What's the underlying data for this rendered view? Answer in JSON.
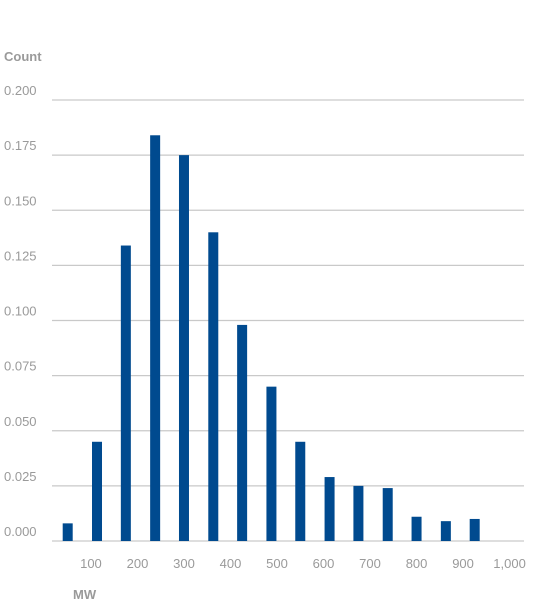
{
  "chart_data": {
    "type": "bar",
    "title": "",
    "ylabel": "Count",
    "xlabel": "MW",
    "ylim": [
      0,
      0.2
    ],
    "y_ticks": [
      "0.000",
      "0.025",
      "0.050",
      "0.075",
      "0.100",
      "0.125",
      "0.150",
      "0.175",
      "0.200"
    ],
    "x_ticks": [
      "100",
      "200",
      "300",
      "400",
      "500",
      "600",
      "700",
      "800",
      "900",
      "1,000"
    ],
    "x_tick_values": [
      100,
      200,
      300,
      400,
      500,
      600,
      700,
      800,
      900,
      1000
    ],
    "xlim": [
      27,
      1031
    ],
    "bar_color": "#004a8f",
    "grid": true,
    "categories": [
      50,
      113,
      175,
      238,
      300,
      363,
      425,
      488,
      550,
      613,
      675,
      738,
      800,
      863,
      925,
      988
    ],
    "values": [
      0.008,
      0.045,
      0.134,
      0.184,
      0.175,
      0.14,
      0.098,
      0.07,
      0.045,
      0.029,
      0.025,
      0.024,
      0.011,
      0.009,
      0.01,
      0.0
    ]
  }
}
